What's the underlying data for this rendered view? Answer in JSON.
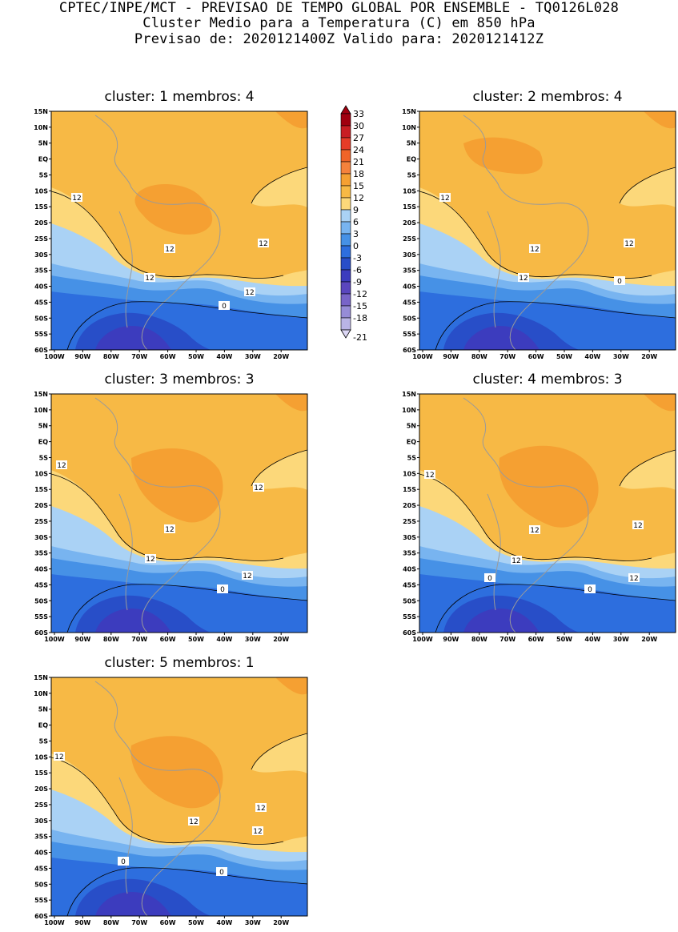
{
  "header": {
    "line1": "CPTEC/INPE/MCT - PREVISAO DE TEMPO GLOBAL POR ENSEMBLE - TQ0126L028",
    "line2": "Cluster Medio para a Temperatura (C) em 850 hPa",
    "line3": "Previsao de: 2020121400Z   Valido para: 2020121412Z"
  },
  "axes": {
    "lat_ticks": [
      "15N",
      "10N",
      "5N",
      "EQ",
      "5S",
      "10S",
      "15S",
      "20S",
      "25S",
      "30S",
      "35S",
      "40S",
      "45S",
      "50S",
      "55S",
      "60S"
    ],
    "lon_ticks": [
      "100W",
      "90W",
      "80W",
      "70W",
      "60W",
      "50W",
      "40W",
      "30W",
      "20W"
    ]
  },
  "colorbar": {
    "levels": [
      "33",
      "30",
      "27",
      "24",
      "21",
      "18",
      "15",
      "12",
      "9",
      "6",
      "3",
      "0",
      "-3",
      "-6",
      "-9",
      "-12",
      "-15",
      "-18",
      "-21"
    ],
    "colors": [
      "#a0000f",
      "#c81e23",
      "#e63c28",
      "#f06428",
      "#f5823c",
      "#f5a032",
      "#f7b945",
      "#fcd87a",
      "#aad2f5",
      "#78b4f0",
      "#4691e6",
      "#2d6ede",
      "#284ec8",
      "#3c3cbe",
      "#5a46be",
      "#7864c8",
      "#968cd7",
      "#b9b4e6",
      "#dcd7f5"
    ]
  },
  "panels": [
    {
      "title": "cluster: 1   membros: 4",
      "labels": [
        "12",
        "12",
        "12",
        "12",
        "12",
        "0"
      ]
    },
    {
      "title": "cluster: 2   membros: 4",
      "labels": [
        "12",
        "12",
        "12",
        "12",
        "0"
      ]
    },
    {
      "title": "cluster: 3   membros: 3",
      "labels": [
        "12",
        "12",
        "12",
        "12",
        "12",
        "0"
      ]
    },
    {
      "title": "cluster: 4   membros: 3",
      "labels": [
        "12",
        "12",
        "12",
        "12",
        "12",
        "0",
        "0"
      ]
    },
    {
      "title": "cluster: 5   membros: 1",
      "labels": [
        "12",
        "12",
        "12",
        "12",
        "0",
        "0"
      ]
    }
  ]
}
